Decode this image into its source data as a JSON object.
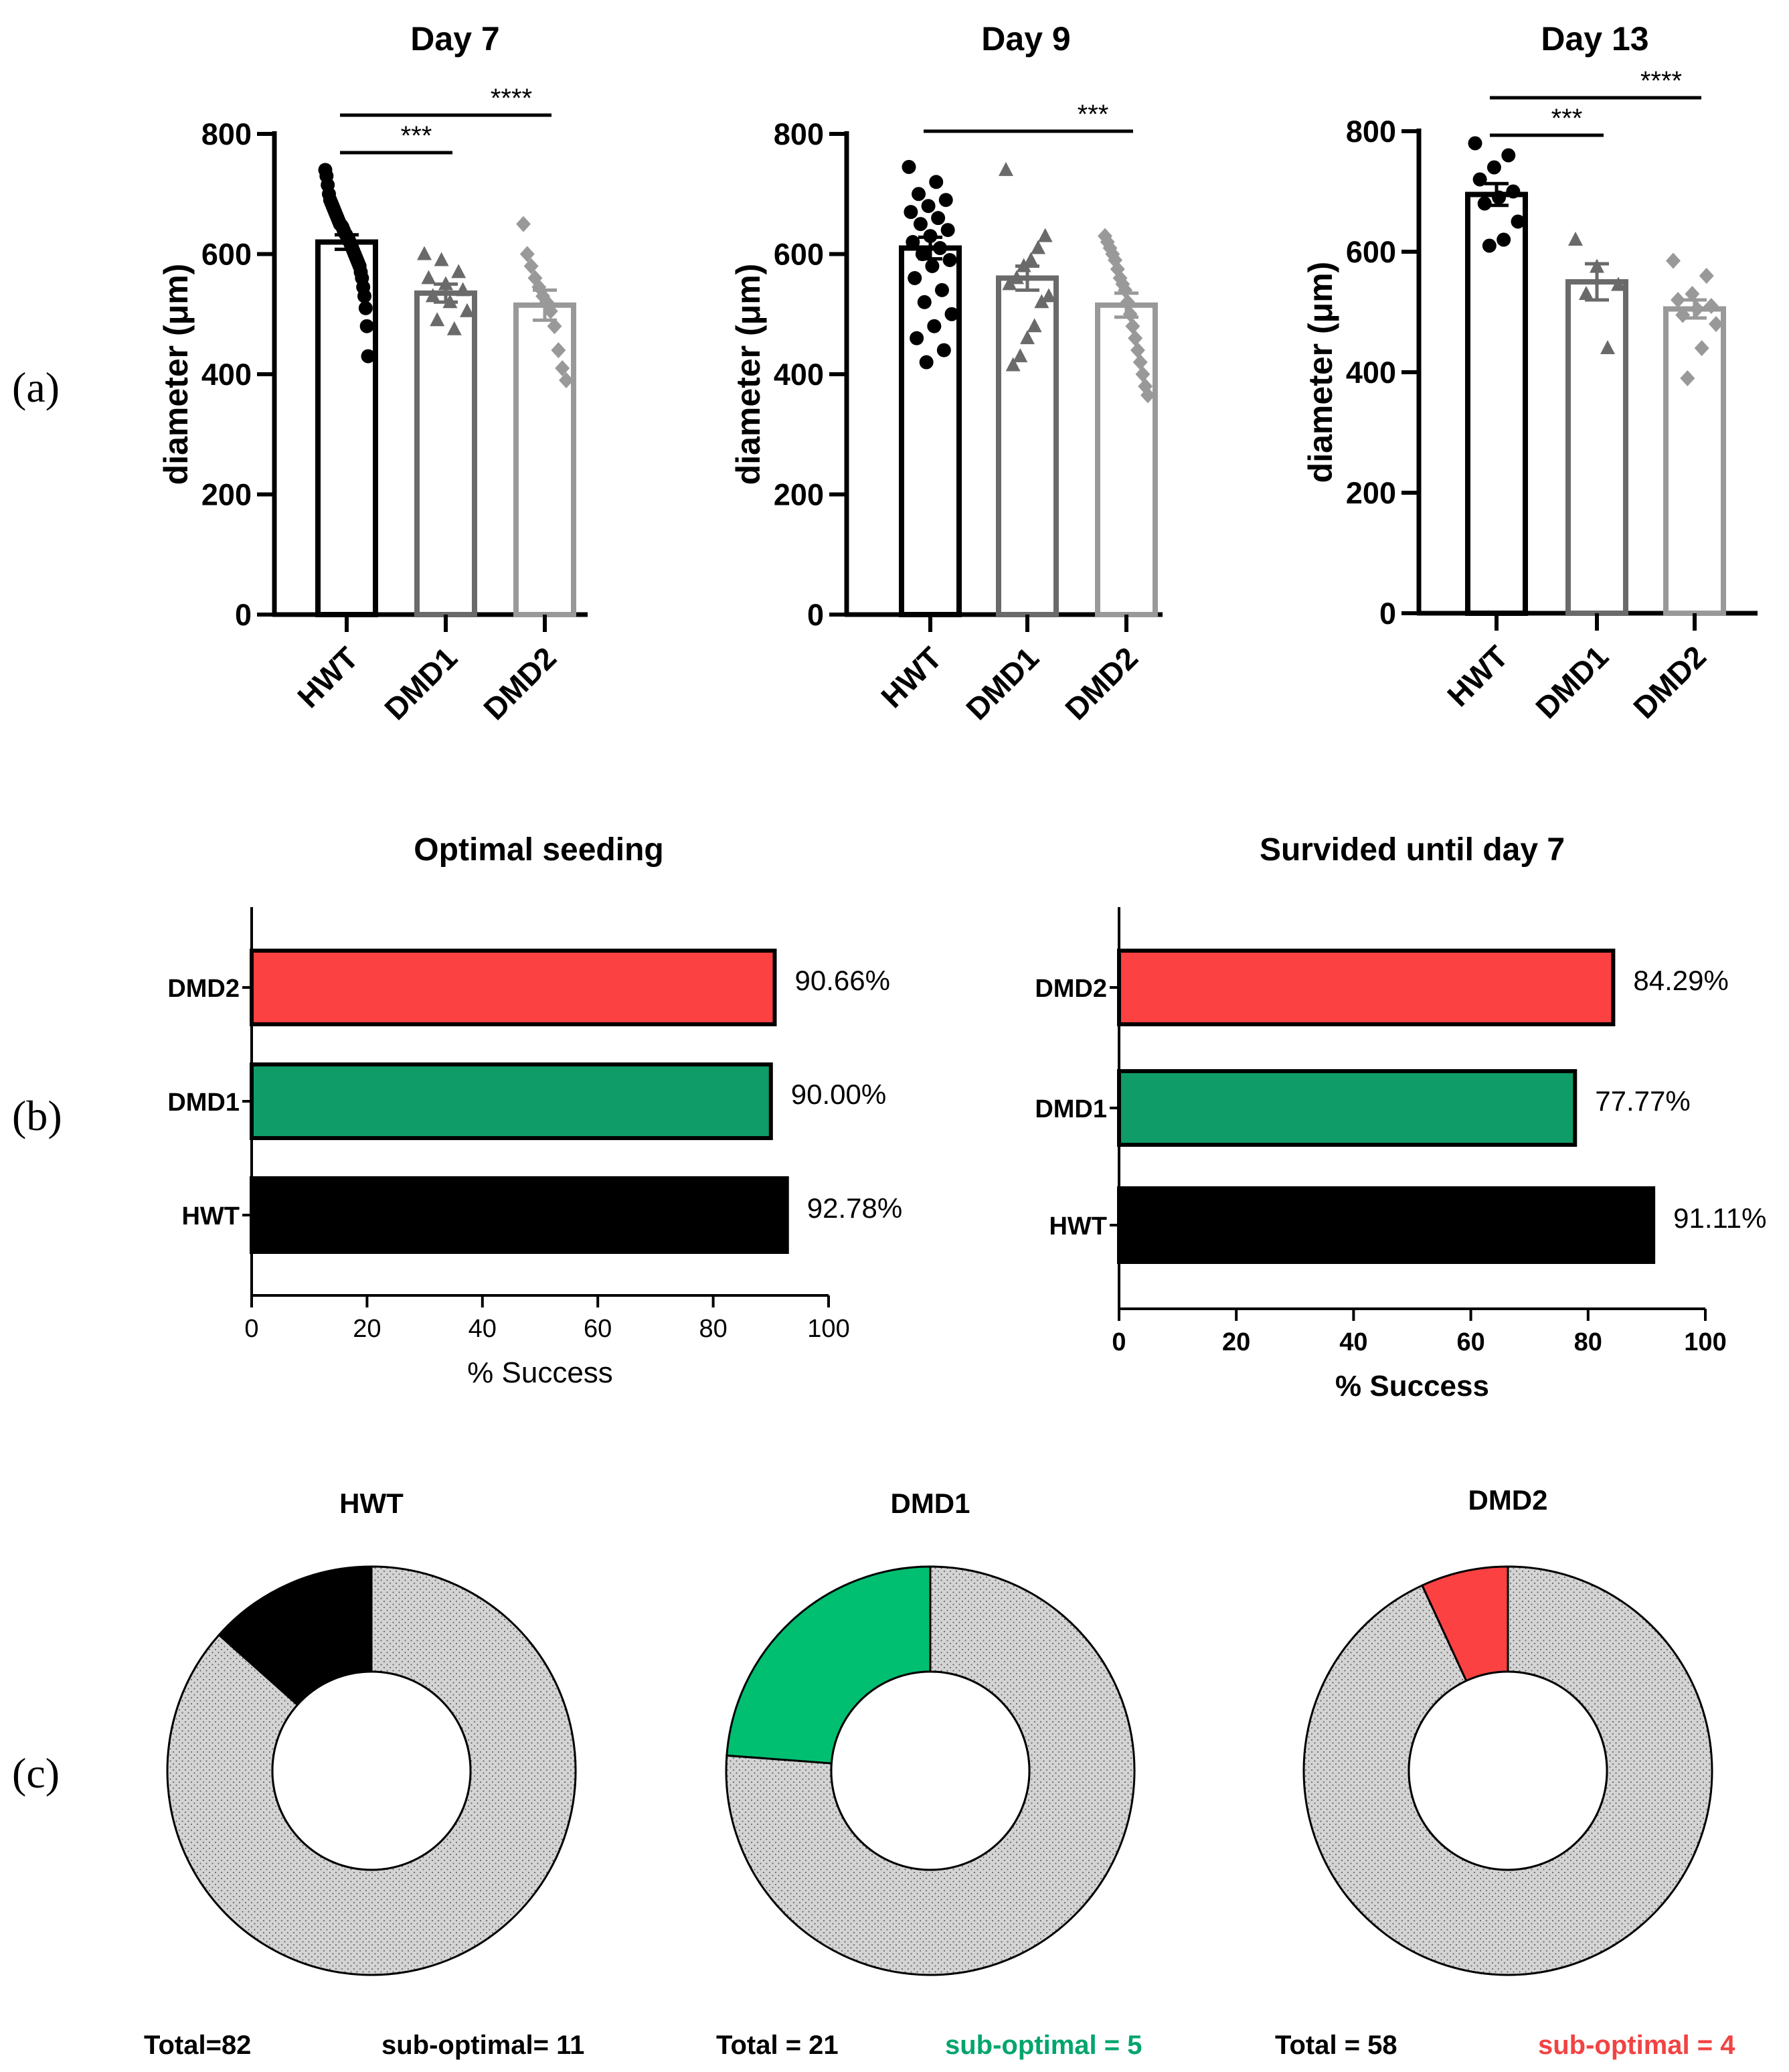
{
  "panel_labels": [
    "(a)",
    "(b)",
    "(c)"
  ],
  "colors": {
    "black": "#000000",
    "dmd1_gray": "#6a6a6a",
    "dmd2_gray": "#999999",
    "red": "#fb4141",
    "green": "#0f9c68",
    "pie_green": "#00bf71",
    "pie_gray": "#d4d4d4",
    "sub_green": "#00a56c",
    "sub_red": "#f14343"
  },
  "chart_data": [
    {
      "id": "day7",
      "type": "bar",
      "title": "Day 7",
      "ylabel": "diameter (μm)",
      "xlabel": "",
      "ylim": [
        0,
        800
      ],
      "yticks": [
        0,
        200,
        400,
        600,
        800
      ],
      "categories": [
        "HWT",
        "DMD1",
        "DMD2"
      ],
      "values": [
        620,
        535,
        515
      ],
      "sem": [
        12,
        15,
        25
      ],
      "points": [
        [
          740,
          730,
          715,
          700,
          690,
          685,
          680,
          675,
          670,
          665,
          660,
          655,
          650,
          648,
          645,
          640,
          635,
          632,
          628,
          625,
          620,
          615,
          610,
          605,
          600,
          595,
          590,
          585,
          580,
          570,
          560,
          545,
          530,
          510,
          480,
          430
        ],
        [
          600,
          590,
          570,
          560,
          550,
          540,
          530,
          520,
          505,
          490,
          475
        ],
        [
          650,
          600,
          580,
          560,
          545,
          530,
          520,
          505,
          480,
          440,
          410,
          390
        ]
      ],
      "significance": [
        {
          "pair": [
            0,
            1
          ],
          "label": "***"
        },
        {
          "pair": [
            0,
            2
          ],
          "label": "****"
        }
      ]
    },
    {
      "id": "day9",
      "type": "bar",
      "title": "Day 9",
      "ylabel": "diameter (μm)",
      "xlabel": "",
      "ylim": [
        0,
        800
      ],
      "yticks": [
        0,
        200,
        400,
        600,
        800
      ],
      "categories": [
        "HWT",
        "DMD1",
        "DMD2"
      ],
      "values": [
        610,
        560,
        515
      ],
      "sem": [
        18,
        20,
        20
      ],
      "points": [
        [
          745,
          720,
          700,
          690,
          680,
          670,
          660,
          650,
          640,
          630,
          620,
          610,
          600,
          590,
          580,
          560,
          540,
          520,
          500,
          480,
          460,
          440,
          420
        ],
        [
          740,
          630,
          610,
          590,
          580,
          560,
          550,
          530,
          520,
          480,
          460,
          430,
          415
        ],
        [
          630,
          620,
          610,
          600,
          590,
          575,
          560,
          550,
          540,
          520,
          500,
          480,
          460,
          440,
          420,
          400,
          380,
          365
        ]
      ],
      "significance": [
        {
          "pair": [
            0,
            2
          ],
          "label": "***"
        }
      ]
    },
    {
      "id": "day13",
      "type": "bar",
      "title": "Day 13",
      "ylabel": "diameter (μm)",
      "xlabel": "",
      "ylim": [
        0,
        800
      ],
      "yticks": [
        0,
        200,
        400,
        600,
        800
      ],
      "categories": [
        "HWT",
        "DMD1",
        "DMD2"
      ],
      "values": [
        695,
        550,
        505
      ],
      "sem": [
        18,
        30,
        15
      ],
      "points": [
        [
          780,
          760,
          740,
          720,
          700,
          690,
          680,
          650,
          620,
          610
        ],
        [
          620,
          575,
          545,
          530,
          440
        ],
        [
          585,
          560,
          530,
          520,
          510,
          505,
          495,
          480,
          440,
          390
        ]
      ],
      "significance": [
        {
          "pair": [
            0,
            1
          ],
          "label": "***"
        },
        {
          "pair": [
            0,
            2
          ],
          "label": "****"
        }
      ]
    },
    {
      "id": "optimal_seeding",
      "type": "bar",
      "orientation": "horizontal",
      "title": "Optimal seeding",
      "xlabel": "% Success",
      "xlim": [
        0,
        100
      ],
      "xticks": [
        0,
        20,
        40,
        60,
        80,
        100
      ],
      "categories": [
        "DMD2",
        "DMD1",
        "HWT"
      ],
      "values": [
        90.66,
        90.0,
        92.78
      ],
      "value_labels": [
        "90.66%",
        "90.00%",
        "92.78%"
      ]
    },
    {
      "id": "survived",
      "type": "bar",
      "orientation": "horizontal",
      "title": "Survided until day 7",
      "xlabel": "% Success",
      "xlim": [
        0,
        100
      ],
      "xticks": [
        0,
        20,
        40,
        60,
        80,
        100
      ],
      "categories": [
        "DMD2",
        "DMD1",
        "HWT"
      ],
      "values": [
        84.29,
        77.77,
        91.11
      ],
      "value_labels": [
        "84.29%",
        "77.77%",
        "91.11%"
      ]
    },
    {
      "id": "pie_hwt",
      "type": "pie",
      "title": "HWT",
      "total": 82,
      "sub_optimal": 11,
      "total_label": "Total=82",
      "sub_label": "sub-optimal= 11"
    },
    {
      "id": "pie_dmd1",
      "type": "pie",
      "title": "DMD1",
      "total": 21,
      "sub_optimal": 5,
      "total_label": "Total = 21",
      "sub_label": "sub-optimal = 5"
    },
    {
      "id": "pie_dmd2",
      "type": "pie",
      "title": "DMD2",
      "total": 58,
      "sub_optimal": 4,
      "total_label": "Total = 58",
      "sub_label": "sub-optimal = 4"
    }
  ]
}
